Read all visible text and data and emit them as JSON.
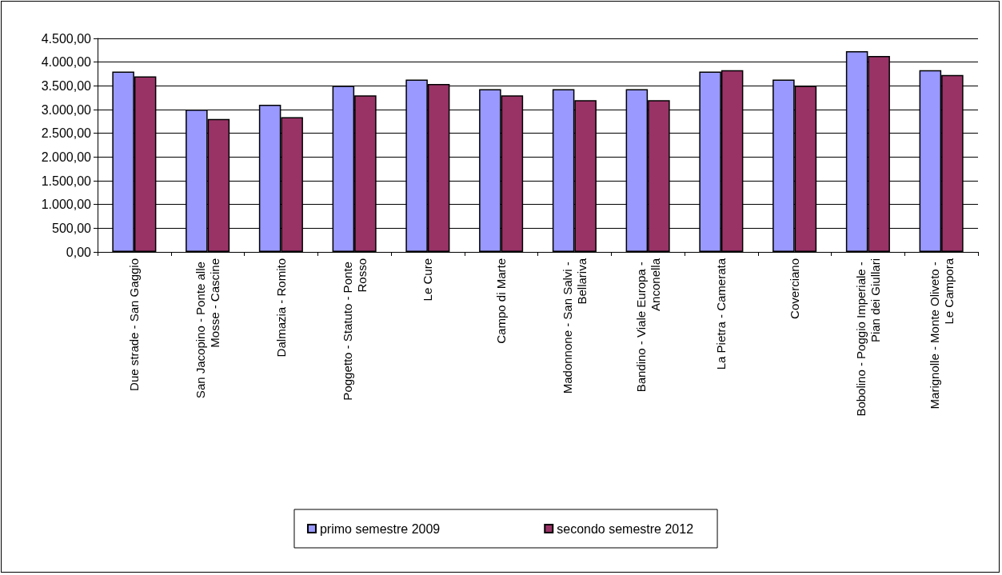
{
  "chart_data": {
    "type": "bar",
    "categories": [
      "Due strade - San Gaggio",
      "San Jacopino - Ponte alle Mosse - Cascine",
      "Dalmazia - Romito",
      "Poggetto - Statuto - Ponte Rosso",
      "Le Cure",
      "Campo di Marte",
      "Madonnone - San Salvi - Bellariva",
      "Bandino - Viale Europa - Anconella",
      "La Pietra - Camerata",
      "Coverciano",
      "Bobolino - Poggio Imperiale - Pian dei Giullari",
      "Marignolle - Monte Oliveto - Le Campora"
    ],
    "series": [
      {
        "name": "primo semestre 2009",
        "color": "#9999ff",
        "values": [
          3800,
          3000,
          3100,
          3500,
          3630,
          3430,
          3430,
          3430,
          3800,
          3630,
          4230,
          3830
        ]
      },
      {
        "name": "secondo semestre 2012",
        "color": "#993366",
        "values": [
          3700,
          2800,
          2840,
          3300,
          3540,
          3300,
          3200,
          3200,
          3830,
          3500,
          4130,
          3730
        ]
      }
    ],
    "ylim": [
      0,
      4500
    ],
    "yticks": [
      {
        "value": 0,
        "label": "0,00"
      },
      {
        "value": 500,
        "label": "500,00"
      },
      {
        "value": 1000,
        "label": "1.000,00"
      },
      {
        "value": 1500,
        "label": "1.500,00"
      },
      {
        "value": 2000,
        "label": "2.000,00"
      },
      {
        "value": 2500,
        "label": "2.500,00"
      },
      {
        "value": 3000,
        "label": "3.000,00"
      },
      {
        "value": 3500,
        "label": "3.500,00"
      },
      {
        "value": 4000,
        "label": "4.000,00"
      },
      {
        "value": 4500,
        "label": "4.500,00"
      }
    ],
    "grid": "y",
    "legend": "bottom"
  }
}
